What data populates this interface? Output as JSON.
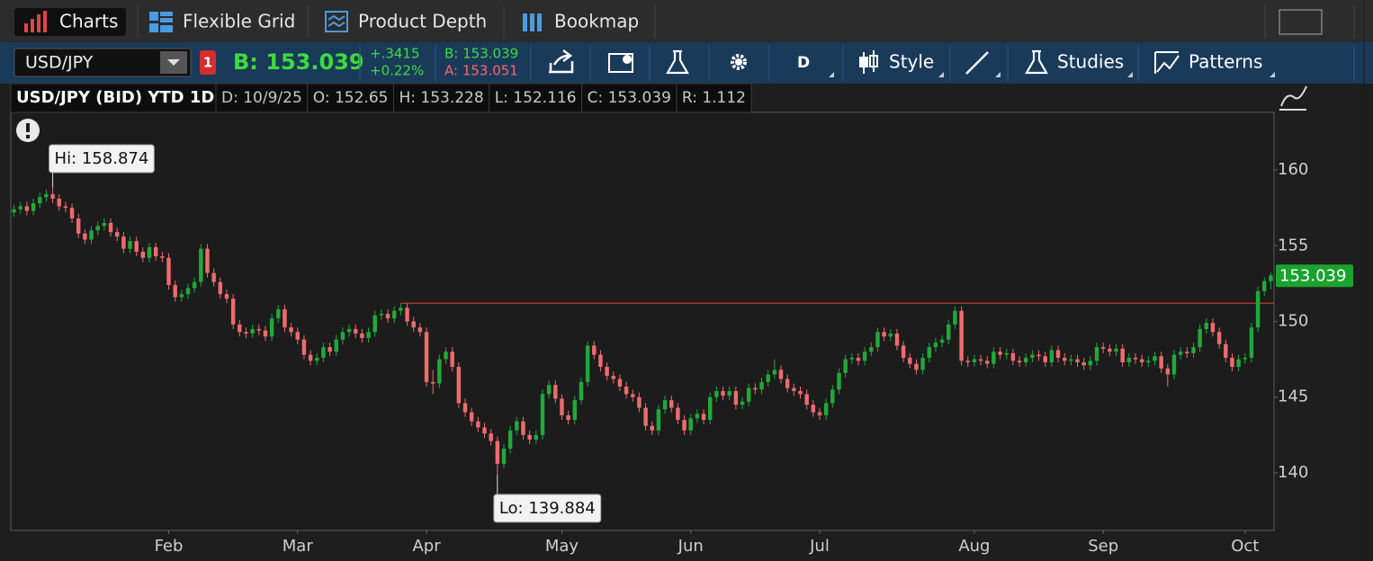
{
  "app": {
    "tabs": [
      "Charts",
      "Flexible Grid",
      "Product Depth",
      "Bookmap"
    ],
    "symbol": "USD/JPY",
    "alert_badge": "1",
    "bid_big": "B: 153.039",
    "change": "+.3415",
    "change_pct": "+0.22%",
    "bid": "B: 153.039",
    "ask": "A: 153.051",
    "aggregation": "D",
    "tools": [
      "Style",
      "Studies",
      "Patterns"
    ]
  },
  "chart_data": {
    "type": "candlestick",
    "title": "USD/JPY (BID) YTD 1D",
    "header_fields": [
      "D: 10/9/25",
      "O: 152.65",
      "H: 153.228",
      "L: 152.116",
      "C: 153.039",
      "R: 1.112"
    ],
    "up_color": "#22a83a",
    "down_color": "#ee6b6e",
    "open": [
      157.2,
      157.4,
      157.6,
      157.3,
      157.8,
      158.2,
      158.4,
      158.1,
      157.6,
      157.5,
      156.8,
      155.8,
      155.4,
      156.0,
      156.3,
      156.5,
      155.9,
      155.6,
      154.8,
      155.3,
      154.6,
      154.2,
      154.9,
      154.3,
      154.2,
      152.4,
      151.6,
      151.8,
      152.2,
      152.6,
      154.8,
      153.2,
      152.6,
      151.8,
      151.5,
      149.8,
      149.3,
      149.2,
      149.5,
      149.4,
      149.0,
      150.2,
      150.8,
      149.6,
      149.3,
      148.8,
      147.8,
      147.4,
      147.6,
      148.3,
      148.0,
      148.8,
      149.3,
      149.5,
      149.2,
      148.9,
      149.3,
      150.4,
      150.5,
      150.2,
      150.7,
      150.9,
      150.0,
      149.6,
      149.3,
      146.0,
      145.9,
      147.5,
      148.0,
      147.0,
      144.6,
      144.0,
      143.4,
      143.0,
      142.6,
      142.1,
      140.6,
      141.6,
      142.8,
      143.4,
      142.5,
      142.2,
      142.5,
      145.2,
      145.8,
      144.9,
      143.8,
      143.5,
      144.8,
      146.0,
      148.4,
      147.8,
      147.0,
      146.4,
      146.2,
      145.7,
      145.2,
      145.0,
      144.3,
      143.1,
      142.8,
      144.2,
      144.8,
      144.3,
      143.5,
      142.8,
      143.6,
      143.9,
      143.5,
      145.0,
      145.4,
      145.1,
      145.4,
      144.5,
      144.7,
      145.6,
      145.5,
      146.0,
      146.5,
      146.8,
      146.2,
      145.6,
      145.4,
      145.2,
      144.5,
      144.0,
      143.8,
      144.6,
      145.5,
      146.6,
      147.5,
      147.6,
      147.4,
      148.0,
      148.3,
      149.3,
      149.0,
      149.2,
      148.4,
      147.6,
      147.2,
      146.8,
      147.6,
      148.3,
      148.6,
      148.8,
      149.8,
      150.7,
      147.4,
      147.3,
      147.5,
      147.4,
      147.2,
      148.0,
      147.8,
      147.9,
      147.4,
      147.3,
      147.6,
      147.8,
      147.7,
      147.3,
      148.1,
      147.6,
      147.4,
      147.5,
      147.3,
      147.1,
      147.4,
      148.3,
      148.2,
      148.0,
      148.2,
      147.3,
      147.6,
      147.5,
      147.3,
      147.4,
      147.7,
      146.9,
      146.5,
      147.8,
      148.0,
      147.9,
      148.3,
      149.5,
      149.9,
      149.3,
      148.5,
      147.6,
      147.0,
      147.5,
      147.6,
      149.6,
      152.0,
      152.65
    ],
    "high": [
      157.7,
      157.9,
      157.9,
      158.1,
      158.5,
      158.7,
      158.874,
      158.4,
      157.9,
      157.8,
      157.1,
      156.1,
      156.3,
      156.6,
      156.8,
      156.8,
      156.2,
      155.9,
      155.6,
      155.6,
      154.9,
      155.2,
      155.2,
      154.6,
      154.5,
      152.7,
      152.1,
      152.5,
      152.9,
      155.1,
      155.1,
      153.5,
      152.9,
      152.1,
      151.8,
      150.1,
      149.6,
      149.8,
      149.8,
      149.7,
      150.5,
      151.1,
      151.1,
      149.9,
      149.6,
      149.1,
      148.1,
      147.9,
      148.6,
      148.6,
      149.1,
      149.6,
      149.8,
      149.8,
      149.5,
      149.6,
      150.7,
      150.8,
      150.8,
      151.0,
      151.2,
      151.2,
      150.3,
      149.9,
      149.6,
      146.8,
      147.8,
      148.3,
      148.3,
      147.3,
      144.9,
      144.3,
      143.7,
      143.3,
      142.9,
      142.4,
      141.9,
      143.1,
      143.7,
      143.7,
      142.8,
      142.8,
      145.5,
      146.1,
      146.1,
      145.2,
      144.1,
      145.1,
      146.3,
      148.7,
      148.7,
      148.1,
      147.3,
      146.7,
      146.5,
      146.0,
      145.5,
      145.3,
      144.6,
      143.4,
      144.5,
      145.1,
      145.1,
      144.6,
      143.8,
      143.9,
      144.2,
      144.2,
      145.3,
      145.7,
      145.7,
      145.7,
      145.7,
      145.0,
      145.9,
      145.9,
      146.3,
      146.8,
      147.5,
      147.1,
      146.5,
      145.9,
      145.7,
      145.5,
      144.8,
      144.3,
      144.9,
      145.8,
      146.9,
      147.8,
      147.9,
      147.9,
      148.3,
      148.6,
      149.6,
      149.6,
      149.5,
      149.5,
      148.7,
      147.9,
      147.5,
      147.9,
      148.6,
      148.9,
      149.1,
      150.1,
      151.0,
      151.0,
      147.7,
      147.8,
      147.8,
      147.7,
      148.3,
      148.3,
      148.2,
      148.2,
      147.7,
      147.9,
      148.1,
      148.1,
      148.0,
      148.4,
      148.4,
      147.9,
      147.8,
      147.8,
      147.6,
      147.7,
      148.6,
      148.6,
      148.5,
      148.5,
      148.5,
      147.9,
      147.9,
      147.8,
      147.7,
      148.0,
      148.0,
      147.2,
      148.1,
      148.3,
      148.3,
      148.6,
      149.8,
      150.2,
      150.2,
      149.6,
      148.8,
      147.9,
      147.8,
      147.9,
      149.9,
      152.3,
      152.9,
      153.228
    ],
    "low": [
      156.9,
      157.1,
      157.0,
      157.0,
      157.5,
      157.9,
      157.8,
      157.3,
      157.2,
      156.5,
      155.5,
      155.1,
      155.1,
      155.7,
      156.0,
      155.6,
      155.3,
      154.5,
      154.5,
      154.3,
      153.9,
      153.9,
      154.0,
      153.9,
      152.1,
      151.3,
      151.3,
      151.5,
      151.9,
      152.3,
      152.9,
      152.3,
      151.5,
      151.2,
      149.5,
      149.0,
      148.9,
      148.9,
      149.1,
      148.7,
      148.7,
      149.9,
      149.3,
      149.0,
      148.5,
      147.5,
      147.1,
      147.1,
      147.3,
      147.7,
      147.7,
      148.5,
      149.0,
      148.9,
      148.6,
      148.6,
      149.0,
      150.1,
      149.9,
      149.9,
      150.4,
      149.7,
      149.3,
      149.0,
      145.7,
      145.2,
      145.6,
      147.2,
      146.7,
      144.3,
      143.7,
      143.1,
      142.7,
      142.3,
      141.8,
      139.884,
      140.3,
      141.3,
      142.5,
      142.2,
      141.9,
      141.9,
      142.2,
      144.9,
      144.6,
      143.5,
      143.2,
      143.2,
      144.5,
      145.7,
      147.5,
      146.7,
      146.1,
      145.9,
      145.4,
      144.9,
      144.7,
      144.0,
      142.8,
      142.5,
      142.5,
      143.9,
      144.0,
      143.2,
      142.5,
      142.5,
      143.3,
      143.2,
      143.2,
      144.7,
      144.8,
      144.8,
      144.2,
      144.2,
      144.4,
      145.2,
      145.2,
      145.7,
      146.2,
      145.9,
      145.3,
      145.1,
      144.9,
      144.2,
      143.7,
      143.5,
      143.5,
      144.3,
      145.2,
      146.3,
      147.2,
      147.1,
      147.1,
      147.7,
      148.0,
      148.7,
      148.7,
      148.1,
      147.3,
      146.9,
      146.5,
      146.5,
      147.3,
      148.0,
      148.3,
      148.5,
      149.5,
      147.1,
      147.0,
      147.0,
      147.1,
      146.9,
      146.9,
      147.5,
      147.5,
      147.1,
      147.0,
      147.0,
      147.3,
      147.4,
      147.0,
      147.0,
      147.3,
      147.1,
      147.1,
      147.0,
      146.8,
      146.8,
      147.1,
      147.9,
      147.7,
      147.7,
      147.0,
      147.0,
      147.2,
      147.0,
      147.0,
      147.1,
      146.6,
      145.7,
      146.2,
      147.5,
      147.6,
      147.6,
      148.0,
      149.2,
      149.0,
      148.2,
      147.3,
      146.7,
      146.7,
      147.2,
      147.3,
      149.3,
      151.7,
      152.116
    ],
    "close": [
      157.4,
      157.6,
      157.3,
      157.8,
      158.2,
      158.4,
      158.1,
      157.6,
      157.5,
      156.8,
      155.8,
      155.4,
      156.0,
      156.3,
      156.5,
      155.9,
      155.6,
      154.8,
      155.3,
      154.6,
      154.2,
      154.9,
      154.3,
      154.2,
      152.4,
      151.6,
      151.8,
      152.2,
      152.6,
      154.8,
      153.2,
      152.6,
      151.8,
      151.5,
      149.8,
      149.3,
      149.2,
      149.5,
      149.4,
      149.0,
      150.2,
      150.8,
      149.6,
      149.3,
      148.8,
      147.8,
      147.4,
      147.6,
      148.3,
      148.0,
      148.8,
      149.3,
      149.5,
      149.2,
      148.9,
      149.3,
      150.4,
      150.5,
      150.2,
      150.7,
      150.9,
      150.0,
      149.6,
      149.3,
      146.0,
      145.9,
      147.5,
      148.0,
      147.0,
      144.6,
      144.0,
      143.4,
      143.0,
      142.6,
      142.1,
      140.6,
      141.6,
      142.8,
      143.4,
      142.5,
      142.2,
      142.5,
      145.2,
      145.8,
      144.9,
      143.8,
      143.5,
      144.8,
      146.0,
      148.4,
      147.8,
      147.0,
      146.4,
      146.2,
      145.7,
      145.2,
      145.0,
      144.3,
      143.1,
      142.8,
      144.2,
      144.8,
      144.3,
      143.5,
      142.8,
      143.6,
      143.9,
      143.5,
      145.0,
      145.4,
      145.1,
      145.4,
      144.5,
      144.7,
      145.6,
      145.5,
      146.0,
      146.5,
      146.8,
      146.2,
      145.6,
      145.4,
      145.2,
      144.5,
      144.0,
      143.8,
      144.6,
      145.5,
      146.6,
      147.5,
      147.6,
      147.4,
      148.0,
      148.3,
      149.3,
      149.0,
      149.2,
      148.4,
      147.6,
      147.2,
      146.8,
      147.6,
      148.3,
      148.6,
      148.8,
      149.8,
      150.7,
      147.4,
      147.3,
      147.5,
      147.4,
      147.2,
      148.0,
      147.8,
      147.9,
      147.4,
      147.3,
      147.6,
      147.8,
      147.7,
      147.3,
      148.1,
      147.6,
      147.4,
      147.5,
      147.3,
      147.1,
      147.4,
      148.3,
      148.2,
      148.0,
      148.2,
      147.3,
      147.6,
      147.5,
      147.3,
      147.4,
      147.7,
      146.9,
      146.5,
      147.8,
      148.0,
      147.9,
      148.3,
      149.5,
      149.9,
      149.3,
      148.5,
      147.6,
      147.0,
      147.5,
      147.6,
      149.6,
      152.0,
      152.65,
      153.039
    ],
    "xlim": [
      -0.5,
      195.5
    ],
    "xticks": [
      {
        "value": 24,
        "label": "Feb"
      },
      {
        "value": 44,
        "label": "Mar"
      },
      {
        "value": 64,
        "label": "Apr"
      },
      {
        "value": 85,
        "label": "May"
      },
      {
        "value": 105,
        "label": "Jun"
      },
      {
        "value": 125,
        "label": "Jul"
      },
      {
        "value": 149,
        "label": "Aug"
      },
      {
        "value": 169,
        "label": "Sep"
      },
      {
        "value": 191,
        "label": "Oct"
      }
    ],
    "ylim": [
      136.2,
      163.8
    ],
    "yticks": [
      140,
      145,
      150,
      155,
      160
    ],
    "level_line": {
      "value": 151.2,
      "start": 60,
      "color": "#c0392b"
    },
    "annotations": {
      "high": "Hi: 158.874",
      "low": "Lo: 139.884"
    }
  }
}
